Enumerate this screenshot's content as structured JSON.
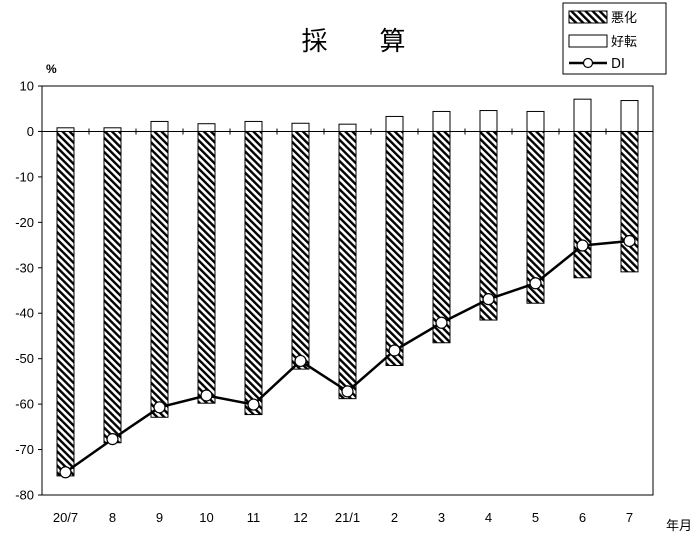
{
  "chart_data": {
    "type": "bar",
    "title": "採　算",
    "unit_label": "%",
    "x_unit_label": "年月",
    "categories": [
      "20/7",
      "8",
      "9",
      "10",
      "11",
      "12",
      "21/1",
      "2",
      "3",
      "4",
      "5",
      "6",
      "7"
    ],
    "series": [
      {
        "name": "悪化",
        "kind": "bar",
        "pattern": "diagonal-hatch",
        "values": [
          -75.8,
          -68.5,
          -62.9,
          -59.8,
          -62.3,
          -52.3,
          -58.8,
          -51.5,
          -46.5,
          -41.5,
          -37.8,
          -32.2,
          -30.9
        ]
      },
      {
        "name": "好転",
        "kind": "bar",
        "pattern": "white",
        "values": [
          0.8,
          0.8,
          2.2,
          1.7,
          2.2,
          1.8,
          1.6,
          3.3,
          4.4,
          4.6,
          4.4,
          7.1,
          6.8
        ]
      },
      {
        "name": "DI",
        "kind": "line",
        "marker": "circle",
        "values": [
          -75.0,
          -67.7,
          -60.7,
          -58.1,
          -60.1,
          -50.5,
          -57.2,
          -48.2,
          -42.1,
          -36.9,
          -33.4,
          -25.1,
          -24.1
        ]
      }
    ],
    "ylim": [
      -80,
      10
    ],
    "yticks": [
      10,
      0,
      -10,
      -20,
      -30,
      -40,
      -50,
      -60,
      -70,
      -80
    ],
    "grid": false,
    "legend_position": "top-right",
    "colors": {
      "axis": "#000000",
      "bar_fill": "#ffffff",
      "hatch": "#000000",
      "line": "#000000"
    }
  }
}
